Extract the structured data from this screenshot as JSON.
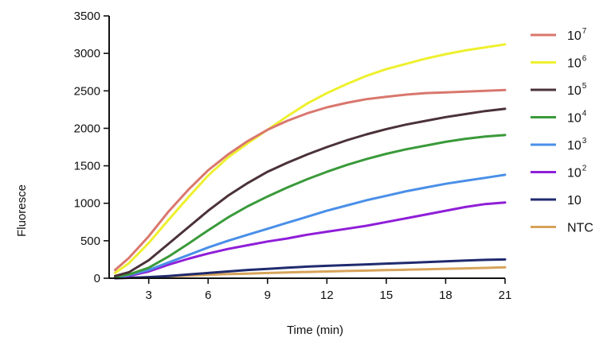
{
  "chart_data": {
    "type": "line",
    "xlabel": "Time (min)",
    "ylabel": "Fluoresce",
    "xlim": [
      1,
      21
    ],
    "ylim": [
      0,
      3500
    ],
    "xticks": [
      3,
      6,
      9,
      12,
      15,
      18,
      21
    ],
    "yticks": [
      0,
      500,
      1000,
      1500,
      2000,
      2500,
      3000,
      3500
    ],
    "legend_position": "right",
    "grid": false,
    "series": [
      {
        "name": "10",
        "sup": "7",
        "color": "#d9776e",
        "x": [
          1.3,
          2,
          3,
          4,
          5,
          6,
          7,
          8,
          9,
          10,
          11,
          12,
          13,
          14,
          15,
          16,
          17,
          18,
          19,
          20,
          21
        ],
        "y": [
          110,
          270,
          560,
          890,
          1180,
          1440,
          1650,
          1830,
          1980,
          2100,
          2200,
          2280,
          2340,
          2390,
          2420,
          2450,
          2470,
          2480,
          2490,
          2500,
          2510
        ]
      },
      {
        "name": "10",
        "sup": "6",
        "color": "#eef02e",
        "x": [
          1.3,
          2,
          3,
          4,
          5,
          6,
          7,
          8,
          9,
          10,
          11,
          12,
          13,
          14,
          15,
          16,
          17,
          18,
          19,
          20,
          21
        ],
        "y": [
          70,
          200,
          470,
          780,
          1080,
          1370,
          1610,
          1800,
          1980,
          2160,
          2330,
          2470,
          2590,
          2700,
          2790,
          2860,
          2930,
          2990,
          3040,
          3080,
          3120
        ]
      },
      {
        "name": "10",
        "sup": "5",
        "color": "#4a3238",
        "x": [
          1.3,
          2,
          3,
          4,
          5,
          6,
          7,
          8,
          9,
          10,
          11,
          12,
          13,
          14,
          15,
          16,
          17,
          18,
          19,
          20,
          21
        ],
        "y": [
          30,
          80,
          240,
          460,
          680,
          900,
          1100,
          1270,
          1420,
          1540,
          1650,
          1750,
          1840,
          1920,
          1990,
          2050,
          2100,
          2150,
          2190,
          2230,
          2260
        ]
      },
      {
        "name": "10",
        "sup": "4",
        "color": "#3a9a3a",
        "x": [
          1.3,
          2,
          3,
          4,
          5,
          6,
          7,
          8,
          9,
          10,
          11,
          12,
          13,
          14,
          15,
          16,
          17,
          18,
          19,
          20,
          21
        ],
        "y": [
          20,
          50,
          140,
          290,
          460,
          640,
          810,
          960,
          1090,
          1210,
          1320,
          1420,
          1510,
          1590,
          1660,
          1720,
          1770,
          1820,
          1860,
          1890,
          1910
        ]
      },
      {
        "name": "10",
        "sup": "3",
        "color": "#4a8fe8",
        "x": [
          1.3,
          2,
          3,
          4,
          5,
          6,
          7,
          8,
          9,
          10,
          11,
          12,
          13,
          14,
          15,
          16,
          17,
          18,
          19,
          20,
          21
        ],
        "y": [
          10,
          40,
          110,
          210,
          310,
          410,
          500,
          580,
          660,
          740,
          820,
          900,
          970,
          1040,
          1100,
          1160,
          1210,
          1260,
          1300,
          1340,
          1380
        ]
      },
      {
        "name": "10",
        "sup": "2",
        "color": "#8f1ed8",
        "x": [
          1.3,
          2,
          3,
          4,
          5,
          6,
          7,
          8,
          9,
          10,
          11,
          12,
          13,
          14,
          15,
          16,
          17,
          18,
          19,
          20,
          21
        ],
        "y": [
          5,
          30,
          90,
          180,
          260,
          330,
          390,
          440,
          490,
          530,
          580,
          620,
          660,
          700,
          750,
          800,
          850,
          900,
          950,
          990,
          1010
        ]
      },
      {
        "name": "10",
        "sup": "",
        "color": "#1f2a6e",
        "x": [
          1.3,
          2,
          3,
          4,
          5,
          6,
          7,
          8,
          9,
          10,
          11,
          12,
          13,
          14,
          15,
          16,
          17,
          18,
          19,
          20,
          21
        ],
        "y": [
          0,
          5,
          15,
          30,
          50,
          70,
          90,
          110,
          125,
          140,
          155,
          165,
          175,
          185,
          195,
          205,
          215,
          225,
          235,
          245,
          250
        ]
      },
      {
        "name": "NTC",
        "sup": "",
        "color": "#d7a35a",
        "x": [
          1.3,
          2,
          3,
          4,
          5,
          6,
          7,
          8,
          9,
          10,
          11,
          12,
          13,
          14,
          15,
          16,
          17,
          18,
          19,
          20,
          21
        ],
        "y": [
          0,
          5,
          15,
          25,
          35,
          45,
          55,
          62,
          70,
          77,
          84,
          90,
          96,
          102,
          108,
          114,
          120,
          126,
          132,
          138,
          145
        ]
      }
    ]
  }
}
